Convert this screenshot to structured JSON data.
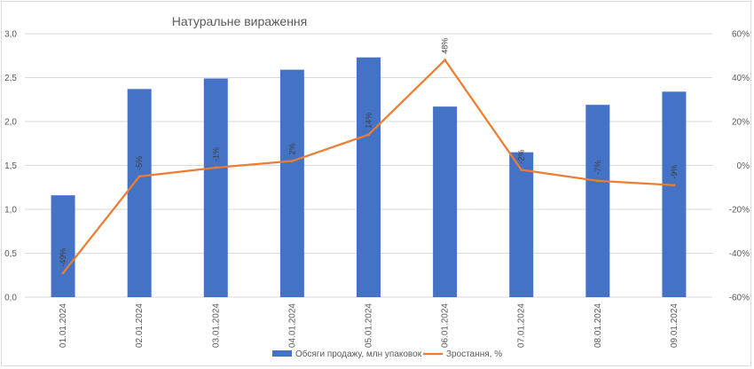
{
  "chart_data": {
    "type": "bar",
    "title": "Натуральне вираження",
    "categories": [
      "01.01.2024",
      "02.01.2024",
      "03.01.2024",
      "04.01.2024",
      "05.01.2024",
      "06.01.2024",
      "07.01.2024",
      "08.01.2024",
      "09.01.2024"
    ],
    "series": [
      {
        "name": "Обсяги продажу, млн упаковок",
        "type": "bar",
        "axis": "left",
        "color": "#4472C4",
        "values": [
          1.16,
          2.37,
          2.49,
          2.59,
          2.73,
          2.17,
          1.65,
          2.19,
          2.34
        ]
      },
      {
        "name": "Зростання, %",
        "type": "line",
        "axis": "right",
        "color": "#ED7D31",
        "values": [
          -49,
          -5,
          -1,
          2,
          14,
          48,
          -2,
          -7,
          -9
        ],
        "labels": [
          "-49%",
          "-5%",
          "-1%",
          "2%",
          "14%",
          "48%",
          "-2%",
          "-7%",
          "-9%"
        ]
      }
    ],
    "y_left": {
      "ylim": [
        0,
        3
      ],
      "ticks": [
        "0,0",
        "0,5",
        "1,0",
        "1,5",
        "2,0",
        "2,5",
        "3,0"
      ]
    },
    "y_right": {
      "ylim": [
        -60,
        60
      ],
      "ticks": [
        "-60%",
        "-40%",
        "-20%",
        "0%",
        "20%",
        "40%",
        "60%"
      ]
    },
    "grid": true,
    "legend_position": "bottom"
  }
}
